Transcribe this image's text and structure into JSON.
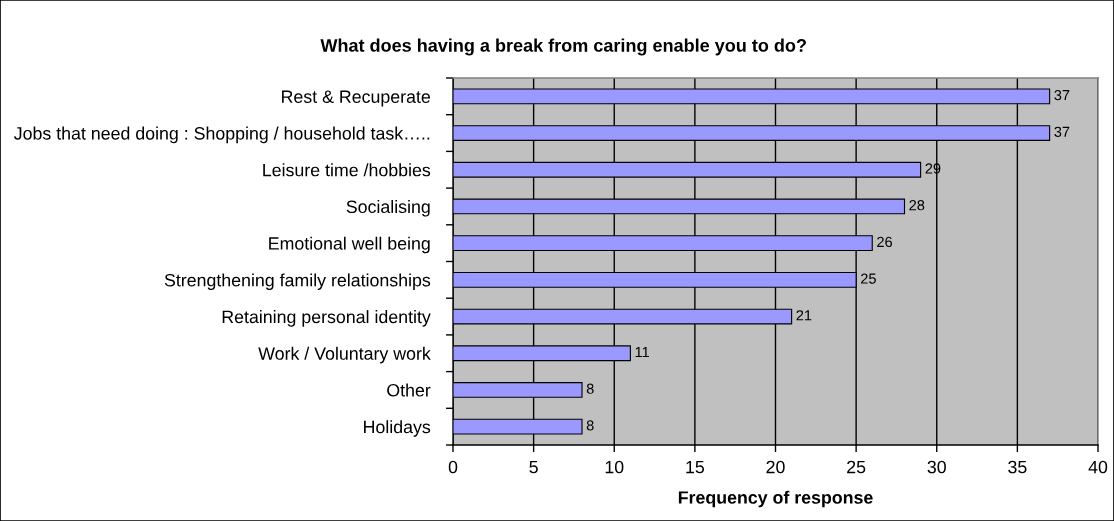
{
  "chart_data": {
    "type": "bar",
    "orientation": "horizontal",
    "title": "What does having a break from caring enable you to do?",
    "xlabel": "Frequency of response",
    "categories": [
      "Rest & Recuperate",
      "Jobs that need doing : Shopping / household task…..",
      "Leisure time /hobbies",
      "Socialising",
      "Emotional well being",
      "Strengthening family relationships",
      "Retaining personal identity",
      "Work / Voluntary work",
      "Other",
      "Holidays"
    ],
    "values": [
      37,
      37,
      29,
      28,
      26,
      25,
      21,
      11,
      8,
      8
    ],
    "color": "#9999ff",
    "xlim": [
      0,
      40
    ],
    "xticks": [
      0,
      5,
      10,
      15,
      20,
      25,
      30,
      35,
      40
    ],
    "grid": "x",
    "data_labels": true
  }
}
